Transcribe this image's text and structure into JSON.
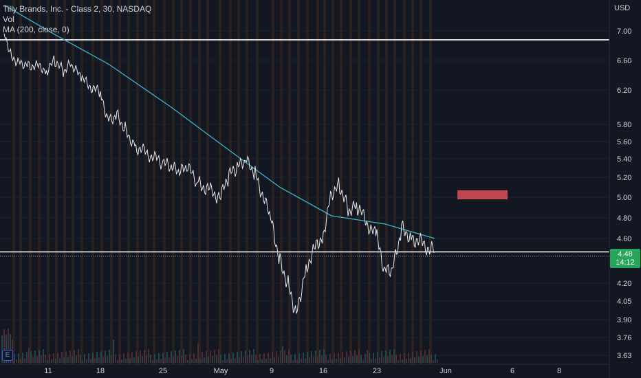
{
  "legend": {
    "title": "Tilly Brands, Inc. - Class 2, 30, NASDAQ",
    "vol": "Vol",
    "ma": "MA (200, close, 0)"
  },
  "price_tag": {
    "price": "4.48",
    "countdown": "14:12"
  },
  "badge": "E",
  "colors": {
    "background": "#131722",
    "ma_line": "#3ab7c9",
    "price_line": "#ffffff",
    "marker": "#c0474f",
    "price_tag": "#26a65b",
    "session_band": "#3a2a1a"
  },
  "chart_data": {
    "type": "line",
    "title": "Tilly Brands, Inc. - Class 2, 30, NASDAQ",
    "currency": "USD",
    "y_ticks": [
      "7.00",
      "6.60",
      "6.20",
      "5.80",
      "5.60",
      "5.40",
      "5.20",
      "5.00",
      "4.80",
      "4.60",
      "4.20",
      "4.05",
      "3.90",
      "3.76",
      "3.63"
    ],
    "x_ticks": [
      "11",
      "18",
      "25",
      "May",
      "9",
      "16",
      "23",
      "Jun",
      "6",
      "8"
    ],
    "horizontal_lines": [
      6.88,
      4.48
    ],
    "rectangle": {
      "x_start": "Jun 4",
      "x_end": "Jun 6",
      "y_low": 4.98,
      "y_high": 5.07
    },
    "series": [
      {
        "name": "price",
        "points": [
          [
            "Apr 5",
            7.0
          ],
          [
            "Apr 6",
            6.65
          ],
          [
            "Apr 7",
            6.58
          ],
          [
            "Apr 8",
            6.55
          ],
          [
            "Apr 11",
            6.48
          ],
          [
            "Apr 12",
            6.6
          ],
          [
            "Apr 13",
            6.45
          ],
          [
            "Apr 14",
            6.55
          ],
          [
            "Apr 15",
            6.35
          ],
          [
            "Apr 18",
            6.15
          ],
          [
            "Apr 19",
            5.85
          ],
          [
            "Apr 20",
            5.92
          ],
          [
            "Apr 21",
            5.75
          ],
          [
            "Apr 22",
            5.55
          ],
          [
            "Apr 25",
            5.35
          ],
          [
            "Apr 26",
            5.3
          ],
          [
            "Apr 27",
            5.25
          ],
          [
            "Apr 28",
            5.3
          ],
          [
            "Apr 29",
            5.15
          ],
          [
            "May 2",
            5.0
          ],
          [
            "May 3",
            5.22
          ],
          [
            "May 4",
            5.3
          ],
          [
            "May 5",
            5.38
          ],
          [
            "May 6",
            5.25
          ],
          [
            "May 9",
            4.75
          ],
          [
            "May 10",
            4.4
          ],
          [
            "May 11",
            4.2
          ],
          [
            "May 12",
            3.95
          ],
          [
            "May 13",
            4.35
          ],
          [
            "May 16",
            4.65
          ],
          [
            "May 17",
            5.05
          ],
          [
            "May 18",
            5.12
          ],
          [
            "May 19",
            4.88
          ],
          [
            "May 20",
            4.9
          ],
          [
            "May 23",
            4.6
          ],
          [
            "May 24",
            4.3
          ],
          [
            "May 25",
            4.35
          ],
          [
            "May 26",
            4.7
          ],
          [
            "May 27",
            4.62
          ],
          [
            "May 31",
            4.48
          ]
        ]
      },
      {
        "name": "MA (200, close, 0)",
        "points": [
          [
            "Apr 5",
            7.35
          ],
          [
            "Apr 12",
            6.95
          ],
          [
            "Apr 19",
            6.55
          ],
          [
            "Apr 26",
            6.0
          ],
          [
            "May 3",
            5.5
          ],
          [
            "May 10",
            5.1
          ],
          [
            "May 17",
            4.82
          ],
          [
            "May 24",
            4.74
          ],
          [
            "May 31",
            4.6
          ]
        ]
      }
    ]
  }
}
